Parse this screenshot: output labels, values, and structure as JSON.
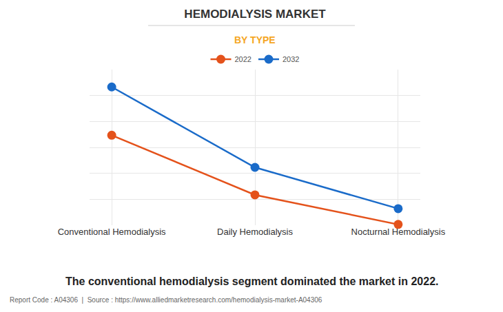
{
  "chart_data": {
    "type": "line",
    "title": "HEMODIALYSIS MARKET",
    "subtitle": "BY TYPE",
    "categories": [
      "Conventional Hemodialysis",
      "Daily Hemodialysis",
      "Nocturnal Hemodialysis"
    ],
    "series": [
      {
        "name": "2022",
        "color": "#e4521b",
        "values": [
          3.47,
          1.17,
          0.03
        ],
        "marker": "circle"
      },
      {
        "name": "2032",
        "color": "#1a6bc9",
        "values": [
          5.33,
          2.23,
          0.64
        ],
        "marker": "circle"
      }
    ],
    "ylim": [
      0,
      6
    ],
    "yticks": [
      0,
      1,
      2,
      3,
      4,
      5,
      6
    ],
    "grid": true,
    "tick_labels": "x",
    "legend": "top",
    "annotations": [
      "The conventional hemodialysis segment dominated the market in 2022.",
      "Report Code : A04306  |  Source : https://www.alliedmarketresearch.com/hemodialysis-market-A04306"
    ]
  }
}
